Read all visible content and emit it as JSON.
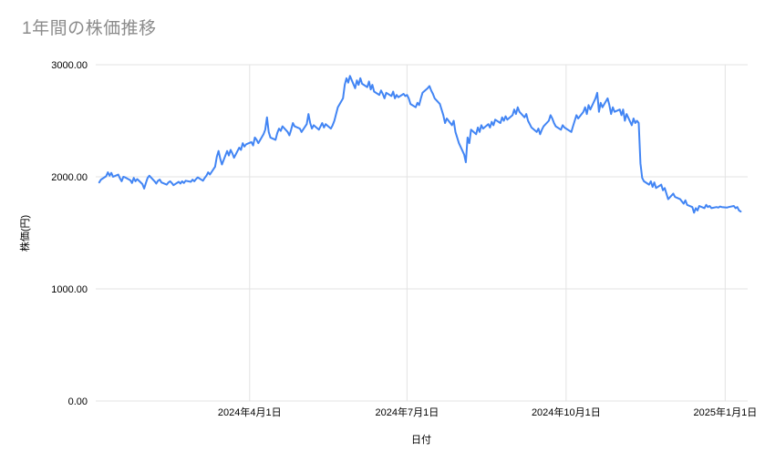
{
  "chart_data": {
    "type": "line",
    "title": "1年間の株価推移",
    "xlabel": "日付",
    "ylabel": "株価(円)",
    "ylim": [
      0,
      3000
    ],
    "x_domain": [
      2,
      379
    ],
    "grid": true,
    "legend": "none",
    "y_ticks": [
      {
        "value": 3000,
        "label": "3000.00"
      },
      {
        "value": 2000,
        "label": "2000.00"
      },
      {
        "value": 1000,
        "label": "1000.00"
      },
      {
        "value": 0,
        "label": "0.00"
      }
    ],
    "x_ticks": [
      {
        "day": 91,
        "label": "2024年4月1日"
      },
      {
        "day": 182,
        "label": "2024年7月1日"
      },
      {
        "day": 274,
        "label": "2024年10月1日"
      },
      {
        "day": 366,
        "label": "2025年1月1日"
      }
    ],
    "colors": {
      "line": "#4285f4",
      "grid": "#e3e3e3",
      "tick_label": "#000000",
      "axis_label": "#000000",
      "title": "#8b8b8b",
      "background": "#ffffff"
    },
    "x": [
      4,
      5,
      8,
      9,
      10,
      11,
      12,
      15,
      16,
      17,
      18,
      19,
      22,
      23,
      24,
      25,
      26,
      29,
      30,
      31,
      32,
      33,
      36,
      37,
      38,
      39,
      40,
      43,
      44,
      45,
      46,
      47,
      50,
      51,
      52,
      53,
      54,
      57,
      58,
      59,
      60,
      61,
      64,
      65,
      66,
      67,
      68,
      71,
      72,
      73,
      74,
      75,
      78,
      79,
      80,
      81,
      82,
      85,
      86,
      87,
      88,
      89,
      92,
      93,
      94,
      95,
      96,
      99,
      100,
      101,
      102,
      103,
      106,
      107,
      108,
      109,
      110,
      113,
      114,
      115,
      116,
      117,
      120,
      121,
      124,
      125,
      126,
      127,
      128,
      131,
      132,
      133,
      134,
      135,
      138,
      139,
      140,
      141,
      142,
      145,
      146,
      147,
      148,
      149,
      152,
      153,
      154,
      155,
      156,
      159,
      160,
      161,
      162,
      163,
      166,
      167,
      168,
      169,
      170,
      173,
      174,
      175,
      176,
      177,
      180,
      181,
      182,
      183,
      184,
      187,
      188,
      189,
      190,
      191,
      194,
      195,
      196,
      197,
      198,
      201,
      202,
      203,
      204,
      205,
      208,
      209,
      210,
      211,
      212,
      215,
      216,
      217,
      218,
      219,
      222,
      223,
      224,
      225,
      226,
      229,
      230,
      231,
      232,
      233,
      236,
      237,
      238,
      239,
      240,
      243,
      244,
      245,
      246,
      247,
      250,
      251,
      252,
      253,
      254,
      257,
      258,
      259,
      260,
      261,
      264,
      265,
      266,
      267,
      268,
      271,
      272,
      273,
      274,
      277,
      278,
      279,
      280,
      281,
      284,
      285,
      286,
      287,
      288,
      291,
      292,
      293,
      294,
      295,
      298,
      299,
      300,
      301,
      302,
      305,
      306,
      307,
      308,
      309,
      312,
      313,
      314,
      315,
      316,
      317,
      318,
      319,
      322,
      323,
      324,
      325,
      326,
      329,
      330,
      331,
      332,
      333,
      336,
      337,
      340,
      341,
      342,
      343,
      344,
      347,
      348,
      349,
      350,
      351,
      354,
      355,
      356,
      357,
      358,
      361,
      362,
      363,
      364,
      367,
      368,
      371,
      372,
      373,
      374,
      375
    ],
    "values": [
      1950,
      1975,
      2005,
      2040,
      2010,
      2035,
      2000,
      2020,
      1985,
      1960,
      2000,
      1995,
      1970,
      1945,
      1990,
      1960,
      1980,
      1935,
      1895,
      1945,
      1990,
      2010,
      1960,
      1940,
      1965,
      1975,
      1950,
      1930,
      1950,
      1960,
      1945,
      1925,
      1955,
      1940,
      1960,
      1945,
      1965,
      1955,
      1975,
      1960,
      1980,
      1995,
      1965,
      1990,
      2010,
      2040,
      2020,
      2090,
      2180,
      2230,
      2160,
      2110,
      2230,
      2190,
      2240,
      2210,
      2170,
      2260,
      2240,
      2300,
      2270,
      2290,
      2310,
      2280,
      2350,
      2330,
      2300,
      2380,
      2420,
      2530,
      2400,
      2350,
      2330,
      2390,
      2430,
      2410,
      2450,
      2400,
      2370,
      2420,
      2480,
      2450,
      2430,
      2400,
      2470,
      2560,
      2480,
      2430,
      2460,
      2420,
      2450,
      2480,
      2440,
      2470,
      2430,
      2460,
      2500,
      2560,
      2620,
      2700,
      2820,
      2880,
      2840,
      2900,
      2790,
      2860,
      2820,
      2880,
      2830,
      2800,
      2850,
      2780,
      2820,
      2760,
      2730,
      2770,
      2740,
      2700,
      2750,
      2720,
      2760,
      2700,
      2730,
      2710,
      2740,
      2720,
      2730,
      2700,
      2650,
      2620,
      2660,
      2640,
      2700,
      2750,
      2790,
      2810,
      2770,
      2740,
      2700,
      2650,
      2600,
      2550,
      2480,
      2520,
      2460,
      2500,
      2400,
      2350,
      2300,
      2200,
      2130,
      2350,
      2300,
      2420,
      2380,
      2440,
      2400,
      2460,
      2430,
      2470,
      2440,
      2490,
      2460,
      2510,
      2480,
      2530,
      2500,
      2540,
      2510,
      2550,
      2600,
      2560,
      2620,
      2580,
      2530,
      2560,
      2500,
      2470,
      2440,
      2400,
      2430,
      2380,
      2420,
      2450,
      2500,
      2550,
      2520,
      2480,
      2450,
      2420,
      2460,
      2440,
      2430,
      2400,
      2450,
      2500,
      2550,
      2520,
      2580,
      2620,
      2560,
      2640,
      2600,
      2700,
      2750,
      2580,
      2660,
      2620,
      2700,
      2640,
      2560,
      2620,
      2580,
      2600,
      2550,
      2600,
      2500,
      2560,
      2460,
      2520,
      2480,
      2500,
      2480,
      2120,
      1990,
      1960,
      1930,
      1960,
      1910,
      1950,
      1900,
      1930,
      1880,
      1900,
      1850,
      1800,
      1850,
      1820,
      1800,
      1780,
      1760,
      1790,
      1750,
      1730,
      1680,
      1720,
      1700,
      1740,
      1720,
      1750,
      1730,
      1740,
      1720,
      1730,
      1725,
      1735,
      1730,
      1725,
      1730,
      1740,
      1720,
      1730,
      1700,
      1690
    ]
  }
}
